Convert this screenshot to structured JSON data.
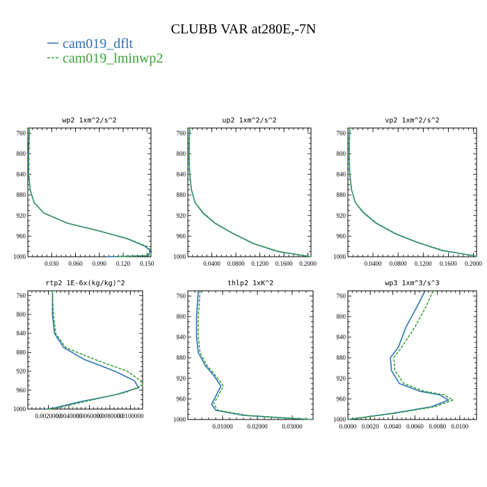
{
  "figure_title": "CLUBB VAR at280E,-7N",
  "legend": [
    {
      "label": "cam019_dflt",
      "color": "#2a72b4",
      "dash": "none"
    },
    {
      "label": "cam019_lminwp2",
      "color": "#3aa33a",
      "dash": "4 2"
    }
  ],
  "chart_data": [
    {
      "type": "line",
      "title": "wp2   1xm^2/s^2",
      "ylim": [
        1000,
        750
      ],
      "xlim": [
        0.0,
        0.155
      ],
      "yticks": [
        760,
        800,
        840,
        880,
        920,
        960,
        1000
      ],
      "xticks": [
        0.03,
        0.06,
        0.09,
        0.12,
        0.15
      ],
      "xtick_labels": [
        "0.030",
        "0.060",
        "0.090",
        "0.120",
        "0.150"
      ],
      "series": [
        {
          "name": "cam019_dflt",
          "points": [
            [
              0.002,
              750
            ],
            [
              0.001,
              800
            ],
            [
              0.001,
              840
            ],
            [
              0.003,
              870
            ],
            [
              0.008,
              895
            ],
            [
              0.02,
              915
            ],
            [
              0.05,
              935
            ],
            [
              0.09,
              950
            ],
            [
              0.125,
              965
            ],
            [
              0.148,
              980
            ],
            [
              0.155,
              990
            ],
            [
              0.15,
              998
            ],
            [
              0.1,
              1000
            ]
          ]
        },
        {
          "name": "cam019_lminwp2",
          "points": [
            [
              0.002,
              750
            ],
            [
              0.001,
              800
            ],
            [
              0.001,
              840
            ],
            [
              0.003,
              870
            ],
            [
              0.008,
              895
            ],
            [
              0.02,
              915
            ],
            [
              0.05,
              935
            ],
            [
              0.09,
              950
            ],
            [
              0.126,
              965
            ],
            [
              0.15,
              980
            ],
            [
              0.156,
              990
            ],
            [
              0.152,
              998
            ],
            [
              0.11,
              1000
            ]
          ]
        }
      ]
    },
    {
      "type": "line",
      "title": "up2   1xm^2/s^2",
      "ylim": [
        1000,
        750
      ],
      "xlim": [
        0.0,
        0.205
      ],
      "yticks": [
        760,
        800,
        840,
        880,
        920,
        960,
        1000
      ],
      "xticks": [
        0.04,
        0.08,
        0.12,
        0.16,
        0.2
      ],
      "xtick_labels": [
        "0.0400",
        "0.0800",
        "0.1200",
        "0.1600",
        "0.2000"
      ],
      "series": [
        {
          "name": "cam019_dflt",
          "points": [
            [
              0.003,
              750
            ],
            [
              0.002,
              800
            ],
            [
              0.003,
              840
            ],
            [
              0.006,
              870
            ],
            [
              0.012,
              895
            ],
            [
              0.025,
              915
            ],
            [
              0.045,
              935
            ],
            [
              0.075,
              955
            ],
            [
              0.11,
              975
            ],
            [
              0.15,
              990
            ],
            [
              0.205,
              1000
            ]
          ]
        },
        {
          "name": "cam019_lminwp2",
          "points": [
            [
              0.003,
              750
            ],
            [
              0.002,
              800
            ],
            [
              0.003,
              840
            ],
            [
              0.006,
              870
            ],
            [
              0.012,
              895
            ],
            [
              0.026,
              915
            ],
            [
              0.046,
              935
            ],
            [
              0.076,
              955
            ],
            [
              0.111,
              975
            ],
            [
              0.152,
              990
            ],
            [
              0.205,
              1000
            ]
          ]
        }
      ]
    },
    {
      "type": "line",
      "title": "vp2   1xm^2/s^2",
      "ylim": [
        1000,
        750
      ],
      "xlim": [
        0.0,
        0.205
      ],
      "yticks": [
        760,
        800,
        840,
        880,
        920,
        960,
        1000
      ],
      "xticks": [
        0.04,
        0.08,
        0.12,
        0.16,
        0.2
      ],
      "xtick_labels": [
        "0.0400",
        "0.0800",
        "0.1200",
        "0.1600",
        "0.2000"
      ],
      "series": [
        {
          "name": "cam019_dflt",
          "points": [
            [
              0.003,
              750
            ],
            [
              0.002,
              800
            ],
            [
              0.003,
              840
            ],
            [
              0.006,
              870
            ],
            [
              0.012,
              895
            ],
            [
              0.025,
              915
            ],
            [
              0.045,
              935
            ],
            [
              0.075,
              955
            ],
            [
              0.11,
              972
            ],
            [
              0.15,
              988
            ],
            [
              0.2,
              998
            ],
            [
              0.205,
              1000
            ]
          ]
        },
        {
          "name": "cam019_lminwp2",
          "points": [
            [
              0.003,
              750
            ],
            [
              0.002,
              800
            ],
            [
              0.003,
              840
            ],
            [
              0.006,
              870
            ],
            [
              0.012,
              895
            ],
            [
              0.026,
              915
            ],
            [
              0.046,
              935
            ],
            [
              0.076,
              955
            ],
            [
              0.111,
              972
            ],
            [
              0.152,
              988
            ],
            [
              0.2,
              998
            ],
            [
              0.205,
              1000
            ]
          ]
        }
      ]
    },
    {
      "type": "line",
      "title": "rtp2   1E-6x(kg/kg)^2",
      "ylim": [
        1000,
        750
      ],
      "xlim": [
        0.0,
        0.0112
      ],
      "yticks": [
        760,
        800,
        840,
        880,
        920,
        960,
        1000
      ],
      "xticks": [
        0.002,
        0.004,
        0.006,
        0.008,
        0.01
      ],
      "xtick_labels": [
        "0.0020000",
        "0.0040000",
        "0.0060000",
        "0.0080000",
        "0.0100000"
      ],
      "series": [
        {
          "name": "cam019_dflt",
          "points": [
            [
              0.0024,
              750
            ],
            [
              0.0024,
              800
            ],
            [
              0.0026,
              840
            ],
            [
              0.0035,
              870
            ],
            [
              0.0055,
              895
            ],
            [
              0.0085,
              920
            ],
            [
              0.0104,
              940
            ],
            [
              0.0108,
              955
            ],
            [
              0.0085,
              970
            ],
            [
              0.005,
              985
            ],
            [
              0.0025,
              998
            ],
            [
              0.0018,
              1000
            ]
          ]
        },
        {
          "name": "cam019_lminwp2",
          "points": [
            [
              0.0024,
              750
            ],
            [
              0.0025,
              800
            ],
            [
              0.0027,
              840
            ],
            [
              0.0037,
              870
            ],
            [
              0.0065,
              895
            ],
            [
              0.0097,
              920
            ],
            [
              0.011,
              940
            ],
            [
              0.0112,
              950
            ],
            [
              0.0095,
              965
            ],
            [
              0.006,
              982
            ],
            [
              0.0028,
              998
            ],
            [
              0.002,
              1000
            ]
          ]
        }
      ]
    },
    {
      "type": "line",
      "title": "thlp2   1xK^2",
      "ylim": [
        1000,
        750
      ],
      "xlim": [
        0.0,
        0.036
      ],
      "yticks": [
        760,
        800,
        840,
        880,
        920,
        960,
        1000
      ],
      "xticks": [
        0.01,
        0.02,
        0.03
      ],
      "xtick_labels": [
        "0.01000",
        "0.02000",
        "0.03000"
      ],
      "series": [
        {
          "name": "cam019_dflt",
          "points": [
            [
              0.003,
              750
            ],
            [
              0.0025,
              800
            ],
            [
              0.0025,
              840
            ],
            [
              0.003,
              870
            ],
            [
              0.005,
              895
            ],
            [
              0.0075,
              915
            ],
            [
              0.0095,
              935
            ],
            [
              0.008,
              955
            ],
            [
              0.0068,
              970
            ],
            [
              0.008,
              982
            ],
            [
              0.016,
              992
            ],
            [
              0.03,
              998
            ],
            [
              0.036,
              1000
            ]
          ]
        },
        {
          "name": "cam019_lminwp2",
          "points": [
            [
              0.0035,
              750
            ],
            [
              0.003,
              800
            ],
            [
              0.003,
              840
            ],
            [
              0.0035,
              870
            ],
            [
              0.0055,
              895
            ],
            [
              0.008,
              915
            ],
            [
              0.0102,
              935
            ],
            [
              0.0086,
              955
            ],
            [
              0.0074,
              970
            ],
            [
              0.0086,
              982
            ],
            [
              0.017,
              992
            ],
            [
              0.031,
              998
            ],
            [
              0.036,
              1000
            ]
          ]
        }
      ]
    },
    {
      "type": "line",
      "title": "wp3   1xm^3/s^3",
      "ylim": [
        1000,
        750
      ],
      "xlim": [
        0.0,
        0.0115
      ],
      "yticks": [
        760,
        800,
        840,
        880,
        920,
        960,
        1000
      ],
      "xticks": [
        0.0,
        0.002,
        0.004,
        0.006,
        0.008,
        0.01
      ],
      "xtick_labels": [
        "0.0000",
        "0.0020",
        "0.0040",
        "0.0060",
        "0.0080",
        "0.0100"
      ],
      "series": [
        {
          "name": "cam019_dflt",
          "points": [
            [
              0.0069,
              750
            ],
            [
              0.0062,
              780
            ],
            [
              0.0052,
              820
            ],
            [
              0.0045,
              860
            ],
            [
              0.0038,
              880
            ],
            [
              0.0039,
              905
            ],
            [
              0.0046,
              930
            ],
            [
              0.0064,
              945
            ],
            [
              0.0082,
              952
            ],
            [
              0.009,
              962
            ],
            [
              0.0075,
              975
            ],
            [
              0.004,
              988
            ],
            [
              0.0,
              1000
            ]
          ]
        },
        {
          "name": "cam019_lminwp2",
          "points": [
            [
              0.0076,
              750
            ],
            [
              0.007,
              780
            ],
            [
              0.006,
              820
            ],
            [
              0.0048,
              860
            ],
            [
              0.0041,
              880
            ],
            [
              0.0042,
              905
            ],
            [
              0.005,
              930
            ],
            [
              0.0068,
              945
            ],
            [
              0.0086,
              952
            ],
            [
              0.0094,
              962
            ],
            [
              0.0078,
              975
            ],
            [
              0.0042,
              988
            ],
            [
              0.0,
              1000
            ]
          ]
        }
      ]
    }
  ]
}
